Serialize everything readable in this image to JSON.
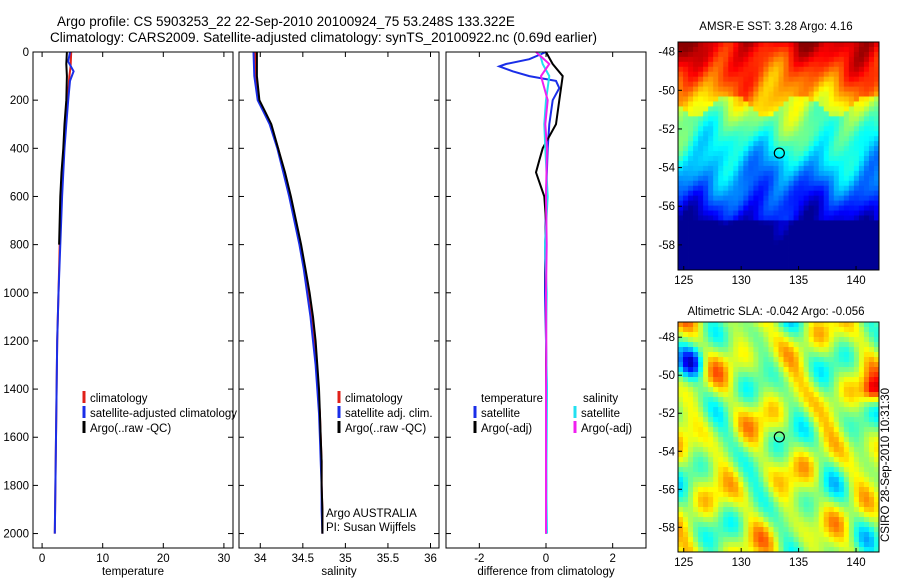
{
  "header": {
    "line1": "Argo profile: CS 5903253_22 22-Sep-2010 20100924_75 53.248S 133.322E",
    "line2": "Climatology: CARS2009. Satellite-adjusted climatology: synTS_20100922.nc (0.69d earlier)"
  },
  "side_label": "CSIRO 28-Sep-2010 10:31:30",
  "colors": {
    "climatology": "#e0201a",
    "satellite": "#1a2ee8",
    "argo": "#000000",
    "salinity_satellite": "#22e0f0",
    "salinity_argo": "#f020f0"
  },
  "chart_data": [
    {
      "type": "line",
      "name": "temperature-profile",
      "xlabel": "temperature",
      "xlim": [
        -1.5,
        31.5
      ],
      "ylim": [
        2060,
        0
      ],
      "x_ticks": [
        "0",
        "10",
        "20",
        "30"
      ],
      "x_tick_values": [
        0,
        10,
        20,
        30
      ],
      "y_ticks": [
        "0",
        "200",
        "400",
        "600",
        "800",
        "1000",
        "1200",
        "1400",
        "1600",
        "1800",
        "2000"
      ],
      "y_tick_values": [
        0,
        200,
        400,
        600,
        800,
        1000,
        1200,
        1400,
        1600,
        1800,
        2000
      ],
      "legend": [
        "climatology",
        "satellite-adjusted climatology",
        "Argo(..raw -QC)"
      ],
      "series": [
        {
          "name": "climatology",
          "color_key": "climatology",
          "depth": [
            0,
            60,
            100,
            200,
            300,
            400,
            600,
            800,
            1000,
            1200,
            1400,
            1600,
            1800,
            2000
          ],
          "values": [
            4.8,
            4.7,
            4.5,
            4.2,
            3.9,
            3.6,
            3.2,
            2.9,
            2.7,
            2.5,
            2.4,
            2.3,
            2.2,
            2.1
          ]
        },
        {
          "name": "satellite-adjusted climatology",
          "color_key": "satellite",
          "depth": [
            0,
            40,
            80,
            120,
            200,
            300,
            400,
            600,
            800,
            1000,
            1200,
            1400,
            1600,
            1800,
            2000
          ],
          "values": [
            4.6,
            4.3,
            5.2,
            4.6,
            4.3,
            4.0,
            3.7,
            3.3,
            3.0,
            2.7,
            2.5,
            2.4,
            2.3,
            2.2,
            2.1
          ]
        },
        {
          "name": "Argo(..raw -QC)",
          "color_key": "argo",
          "depth": [
            0,
            50,
            100,
            200,
            300,
            400,
            500,
            600,
            800
          ],
          "values": [
            4.1,
            4.0,
            4.1,
            4.0,
            3.7,
            3.5,
            3.2,
            3.0,
            2.8
          ]
        }
      ]
    },
    {
      "type": "line",
      "name": "salinity-profile",
      "xlabel": "salinity",
      "xlim": [
        33.75,
        36.1
      ],
      "ylim": [
        2060,
        0
      ],
      "x_ticks": [
        "34",
        "34.5",
        "35",
        "35.5",
        "36"
      ],
      "x_tick_values": [
        34,
        34.5,
        35,
        35.5,
        36
      ],
      "legend": [
        "climatology",
        "satellite adj. clim.",
        "Argo(..raw -QC)"
      ],
      "annotation": [
        "Argo AUSTRALIA",
        "PI: Susan Wijffels"
      ],
      "series": [
        {
          "name": "climatology",
          "color_key": "climatology",
          "depth": [
            0,
            100,
            200,
            250,
            300,
            400,
            500,
            600,
            700,
            800,
            900,
            1000,
            1100,
            1200,
            1300,
            1400,
            1500,
            1600,
            1700,
            1800,
            1900,
            2000
          ],
          "values": [
            33.94,
            33.95,
            33.98,
            34.05,
            34.12,
            34.21,
            34.28,
            34.35,
            34.41,
            34.47,
            34.52,
            34.56,
            34.6,
            34.63,
            34.66,
            34.68,
            34.7,
            34.71,
            34.72,
            34.72,
            34.73,
            34.73
          ]
        },
        {
          "name": "satellite adj. clim.",
          "color_key": "satellite",
          "depth": [
            0,
            100,
            200,
            250,
            300,
            400,
            500,
            600,
            700,
            800,
            900,
            1000,
            1100,
            1200,
            1300,
            1400,
            1500,
            1600,
            1700,
            1800,
            1900,
            2000
          ],
          "values": [
            33.92,
            33.93,
            33.97,
            34.04,
            34.11,
            34.2,
            34.27,
            34.34,
            34.4,
            34.46,
            34.51,
            34.55,
            34.59,
            34.62,
            34.65,
            34.67,
            34.69,
            34.7,
            34.71,
            34.72,
            34.72,
            34.73
          ]
        },
        {
          "name": "Argo(..raw -QC)",
          "color_key": "argo",
          "depth": [
            0,
            100,
            200,
            250,
            300,
            400,
            500,
            600,
            700,
            800,
            900,
            1000,
            1100,
            1200,
            1300,
            1400,
            1500,
            1600,
            1700,
            1800,
            1900,
            2000
          ],
          "values": [
            33.96,
            33.96,
            33.99,
            34.06,
            34.13,
            34.21,
            34.29,
            34.36,
            34.42,
            34.48,
            34.53,
            34.58,
            34.62,
            34.65,
            34.67,
            34.69,
            34.7,
            34.71,
            34.72,
            34.72,
            34.73,
            34.73
          ]
        }
      ]
    },
    {
      "type": "line",
      "name": "difference-profile",
      "xlabel": "difference from climatology",
      "xlim": [
        -3,
        3
      ],
      "ylim": [
        2060,
        0
      ],
      "x_ticks": [
        "-2",
        "0",
        "2"
      ],
      "x_tick_values": [
        -2,
        0,
        2
      ],
      "legend_left_title": "temperature",
      "legend_left": [
        "satellite",
        "Argo(-adj)"
      ],
      "legend_right_title": "salinity",
      "legend_right": [
        "satellite",
        "Argo(-adj)"
      ],
      "series": [
        {
          "name": "temperature satellite",
          "color_key": "satellite",
          "depth": [
            0,
            30,
            50,
            60,
            80,
            100,
            120,
            150,
            200,
            300,
            400,
            600,
            800,
            1000,
            1200,
            1400,
            1600,
            1800,
            2000
          ],
          "values": [
            0.0,
            -0.5,
            -1.2,
            -1.4,
            -1.0,
            -0.5,
            0.3,
            0.4,
            0.2,
            0.1,
            0.05,
            0.0,
            -0.02,
            -0.03,
            0.0,
            0.02,
            0.0,
            0.01,
            0.0
          ]
        },
        {
          "name": "temperature Argo(-adj)",
          "color_key": "argo",
          "depth": [
            0,
            50,
            100,
            200,
            300,
            400,
            450,
            500,
            600,
            700,
            800,
            1000,
            1200,
            1400,
            1600,
            1800,
            2000
          ],
          "values": [
            0.0,
            0.2,
            0.5,
            0.4,
            0.3,
            -0.1,
            -0.2,
            -0.3,
            -0.05,
            0.0,
            -0.02,
            0.0,
            0.0,
            0.0,
            0.0,
            0.0,
            0.0
          ]
        },
        {
          "name": "salinity satellite",
          "color_key": "salinity_satellite",
          "depth": [
            0,
            50,
            100,
            200,
            300,
            400,
            600,
            800,
            1000,
            1200,
            1400,
            1600,
            1800,
            2000
          ],
          "values": [
            -0.2,
            -0.1,
            0.1,
            0.0,
            -0.05,
            -0.02,
            0.05,
            -0.03,
            0.02,
            0.0,
            0.03,
            0.02,
            0.01,
            0.03
          ]
        },
        {
          "name": "salinity Argo(-adj)",
          "color_key": "salinity_argo",
          "depth": [
            0,
            50,
            100,
            200,
            300,
            400,
            600,
            800,
            1000,
            1200,
            1400,
            1600,
            1800,
            2000
          ],
          "values": [
            -0.3,
            0.1,
            -0.15,
            0.05,
            -0.02,
            0.03,
            0.0,
            0.02,
            0.0,
            0.01,
            0.0,
            0.0,
            0.0,
            0.0
          ]
        }
      ]
    },
    {
      "type": "heatmap",
      "name": "sst-map",
      "title": "AMSR-E SST: 3.28 Argo: 4.16",
      "xlim": [
        124.5,
        142
      ],
      "ylim": [
        -59.3,
        -47.5
      ],
      "x_ticks": [
        "125",
        "130",
        "135",
        "140"
      ],
      "x_tick_values": [
        125,
        130,
        135,
        140
      ],
      "y_ticks": [
        "-48",
        "-50",
        "-52",
        "-54",
        "-56",
        "-58"
      ],
      "y_tick_values": [
        -48,
        -50,
        -52,
        -54,
        -56,
        -58
      ],
      "marker": {
        "lon": 133.322,
        "lat": -53.248
      }
    },
    {
      "type": "heatmap",
      "name": "sla-map",
      "title": "Altimetric SLA: -0.042 Argo: -0.056",
      "xlim": [
        124.5,
        142
      ],
      "ylim": [
        -59.3,
        -47.2
      ],
      "x_ticks": [
        "125",
        "130",
        "135",
        "140"
      ],
      "x_tick_values": [
        125,
        130,
        135,
        140
      ],
      "y_ticks": [
        "-48",
        "-50",
        "-52",
        "-54",
        "-56",
        "-58"
      ],
      "y_tick_values": [
        -48,
        -50,
        -52,
        -54,
        -56,
        -58
      ],
      "marker": {
        "lon": 133.322,
        "lat": -53.248
      }
    }
  ]
}
